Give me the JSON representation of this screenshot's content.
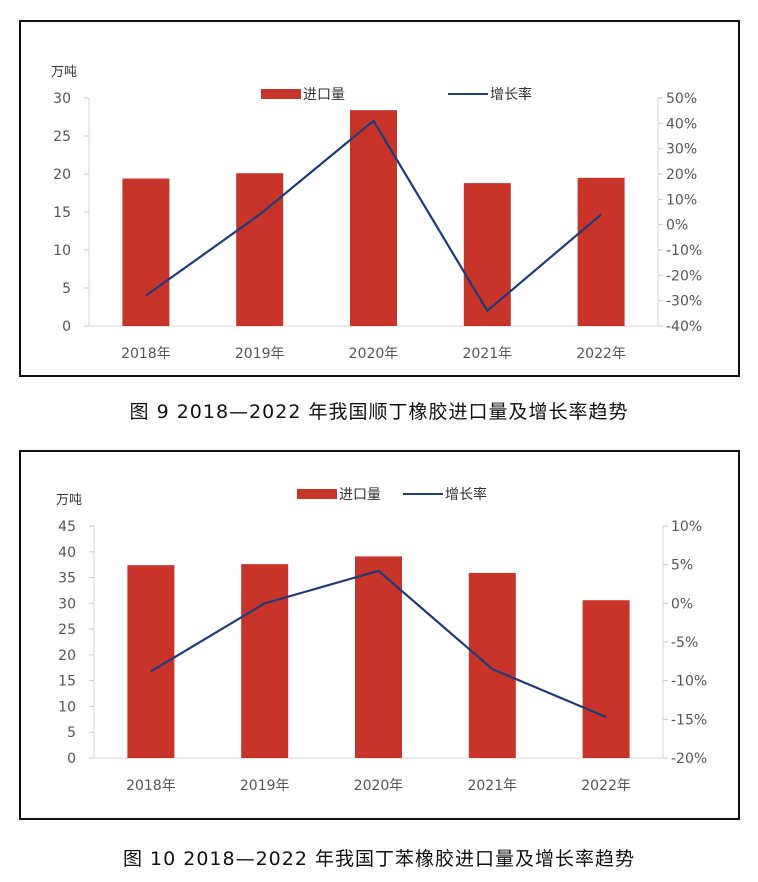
{
  "chart_data": [
    {
      "type": "bar+line",
      "y_unit": "万吨",
      "categories": [
        "2018年",
        "2019年",
        "2020年",
        "2021年",
        "2022年"
      ],
      "series": [
        {
          "name": "进口量",
          "type": "bar",
          "axis": "left",
          "values": [
            19.4,
            20.1,
            28.4,
            18.8,
            19.5
          ]
        },
        {
          "name": "增长率",
          "type": "line",
          "axis": "right",
          "values": [
            -28,
            4,
            41,
            -34,
            4
          ]
        }
      ],
      "y_left": {
        "min": 0,
        "max": 30,
        "ticks": [
          "0",
          "5",
          "10",
          "15",
          "20",
          "25",
          "30"
        ]
      },
      "y_right": {
        "min": -40,
        "max": 50,
        "ticks": [
          "-40%",
          "-30%",
          "-20%",
          "-10%",
          "0%",
          "10%",
          "20%",
          "30%",
          "40%",
          "50%"
        ]
      },
      "legend_position": "top",
      "bar_color": "#c8342a",
      "line_color": "#1f3a78"
    },
    {
      "type": "bar+line",
      "y_unit": "万吨",
      "categories": [
        "2018年",
        "2019年",
        "2020年",
        "2021年",
        "2022年"
      ],
      "series": [
        {
          "name": "进口量",
          "type": "bar",
          "axis": "left",
          "values": [
            37.4,
            37.6,
            39.1,
            35.9,
            30.6
          ]
        },
        {
          "name": "增长率",
          "type": "line",
          "axis": "right",
          "values": [
            -8.8,
            0,
            4.2,
            -8.5,
            -14.7
          ]
        }
      ],
      "y_left": {
        "min": 0,
        "max": 45,
        "ticks": [
          "0",
          "5",
          "10",
          "15",
          "20",
          "25",
          "30",
          "35",
          "40",
          "45"
        ]
      },
      "y_right": {
        "min": -20,
        "max": 10,
        "ticks": [
          "-20%",
          "-15%",
          "-10%",
          "-5%",
          "0%",
          "5%",
          "10%"
        ]
      },
      "legend_position": "top",
      "bar_color": "#c8342a",
      "line_color": "#1f3a78"
    }
  ],
  "captions": {
    "fig9": "图 9  2018—2022 年我国顺丁橡胶进口量及增长率趋势",
    "fig10": "图 10  2018—2022 年我国丁苯橡胶进口量及增长率趋势"
  }
}
